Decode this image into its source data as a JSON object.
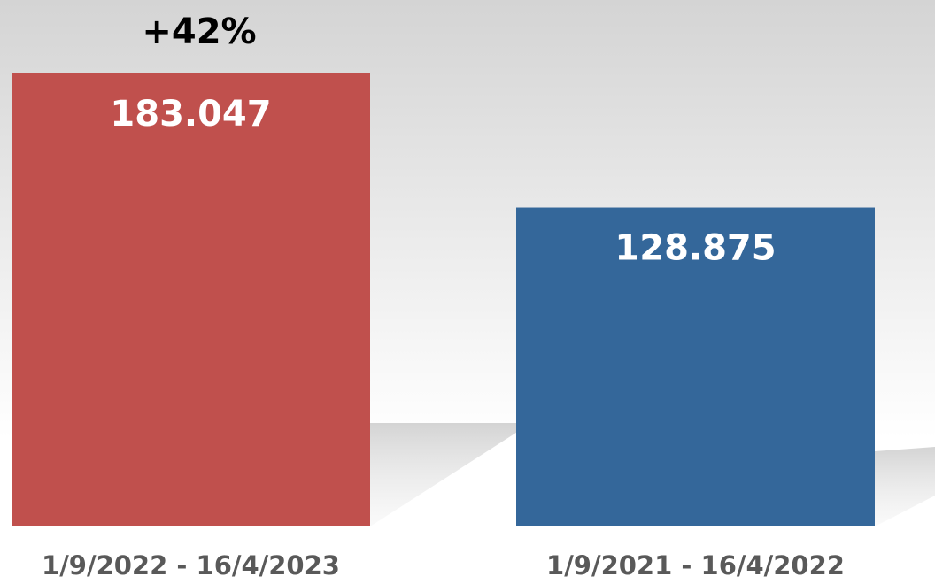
{
  "chart_data": {
    "type": "bar",
    "annotation": "+42%",
    "categories": [
      "1/9/2022 - 16/4/2023",
      "1/9/2021 - 16/4/2022"
    ],
    "values": [
      183047,
      128875
    ],
    "value_labels": [
      "183.047",
      "128.875"
    ],
    "colors": [
      "#c0504d",
      "#34679a"
    ]
  }
}
